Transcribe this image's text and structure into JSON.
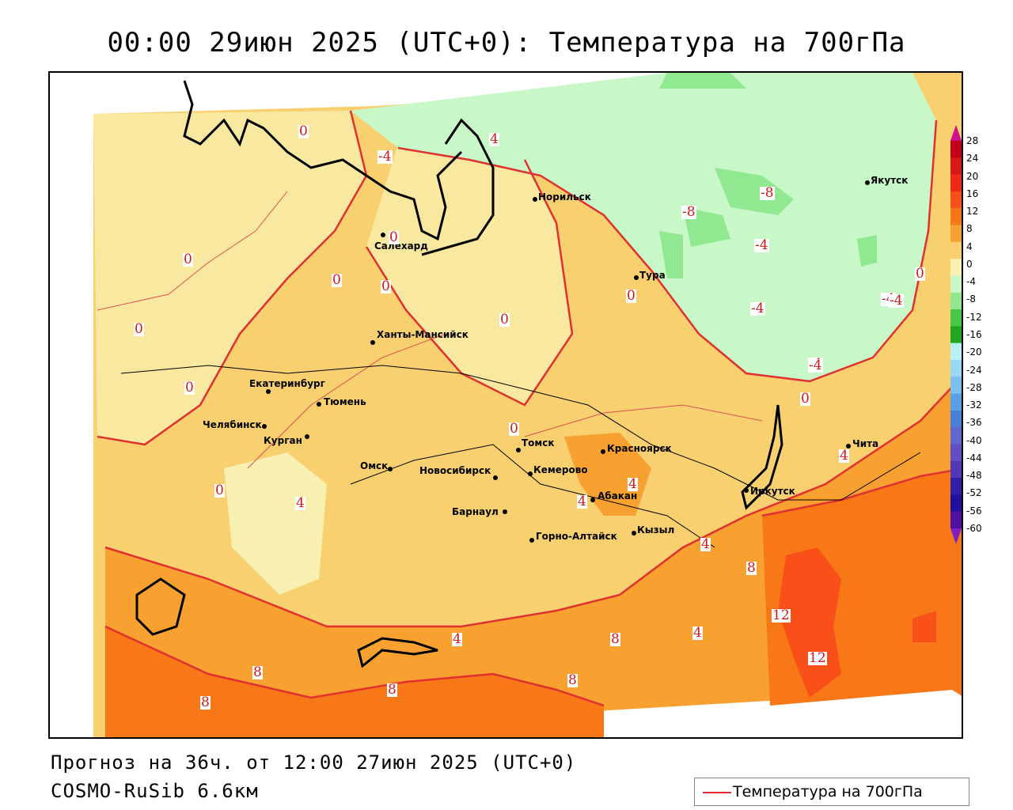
{
  "title": "00:00 29июн 2025 (UTC+0): Температура на 700гПа",
  "footer": {
    "forecast": "Прогноз на 36ч. от 12:00 27июн 2025 (UTC+0)",
    "model": "COSMO-RuSib 6.6км"
  },
  "legend": {
    "line_label": "Температура на 700гПа",
    "line_color": "#e03030"
  },
  "colorbar": {
    "labels": [
      "28",
      "24",
      "20",
      "16",
      "12",
      "8",
      "4",
      "0",
      "-4",
      "-8",
      "-12",
      "-16",
      "-20",
      "-24",
      "-28",
      "-32",
      "-36",
      "-40",
      "-44",
      "-48",
      "-52",
      "-56",
      "-60"
    ],
    "colors": [
      "#c00018",
      "#d81818",
      "#f02818",
      "#f85018",
      "#f87818",
      "#f8a030",
      "#f8d070",
      "#f8f0b0",
      "#c8f8c8",
      "#90e890",
      "#48c848",
      "#20a820",
      "#b8f0f8",
      "#98d8f8",
      "#78c0f0",
      "#58a0e8",
      "#4880d8",
      "#6068d0",
      "#6050c8",
      "#5038b8",
      "#3020a8",
      "#2010a0",
      "#5010a0"
    ]
  },
  "cities": [
    {
      "name": "Норильск"
    },
    {
      "name": "Якутск"
    },
    {
      "name": "Салехард"
    },
    {
      "name": "Тура"
    },
    {
      "name": "Ханты-Мансийск"
    },
    {
      "name": "Екатеринбург"
    },
    {
      "name": "Тюмень"
    },
    {
      "name": "Челябинск"
    },
    {
      "name": "Курган"
    },
    {
      "name": "Омск"
    },
    {
      "name": "Новосибирск"
    },
    {
      "name": "Томск"
    },
    {
      "name": "Кемерово"
    },
    {
      "name": "Красноярск"
    },
    {
      "name": "Барнаул"
    },
    {
      "name": "Абакан"
    },
    {
      "name": "Горно-Алтайск"
    },
    {
      "name": "Кызыл"
    },
    {
      "name": "Иркутск"
    },
    {
      "name": "Чита"
    }
  ],
  "contour_labels": [
    "0",
    "-4",
    "4",
    "-8",
    "-4",
    "-8",
    "-4",
    "-4",
    "-4",
    "0",
    "-4",
    "0",
    "0",
    "0",
    "0",
    "0",
    "0",
    "0",
    "0",
    "0",
    "0",
    "4",
    "4",
    "4",
    "4",
    "4",
    "8",
    "4",
    "4",
    "8",
    "8",
    "8",
    "8",
    "12",
    "12",
    "8",
    "-4",
    "0"
  ]
}
